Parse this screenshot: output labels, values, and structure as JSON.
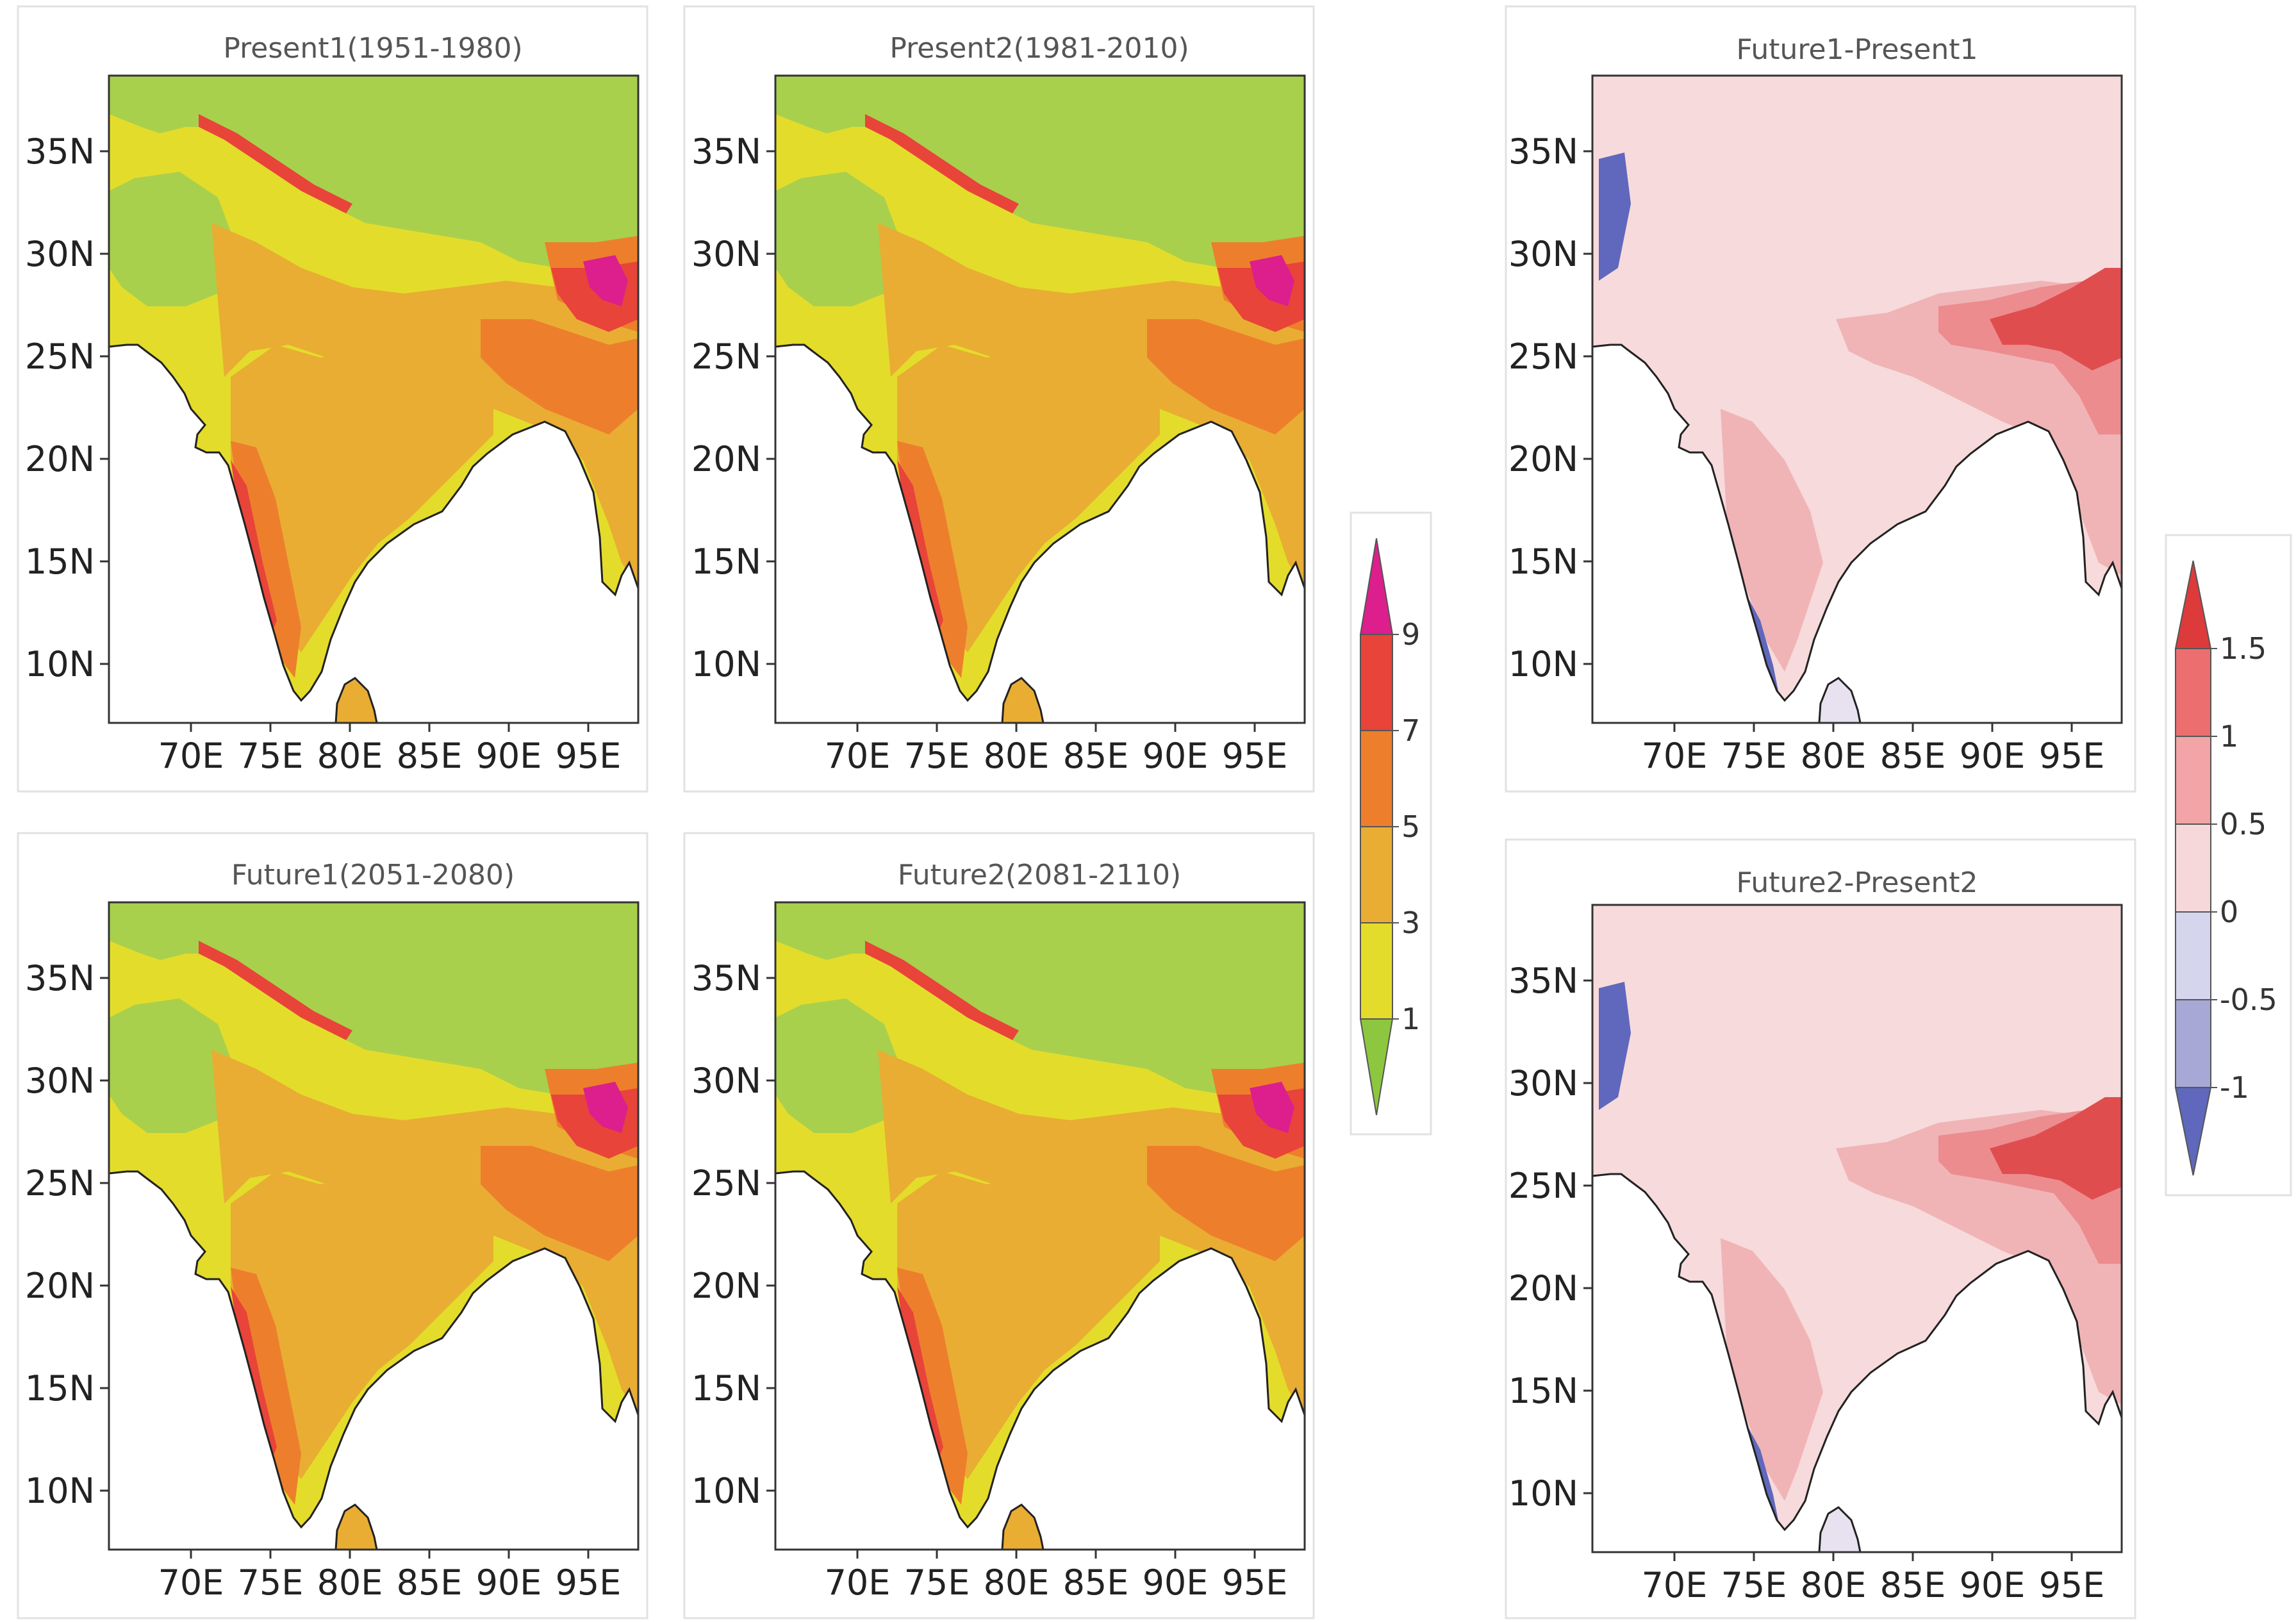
{
  "lat_ticks": [
    "35N",
    "30N",
    "25N",
    "20N",
    "15N",
    "10N"
  ],
  "lon_ticks": [
    "70E",
    "75E",
    "80E",
    "85E",
    "90E",
    "95E"
  ],
  "panels": [
    {
      "title": "Present1(1951-1980)",
      "scheme": "abs"
    },
    {
      "title": "Present2(1981-2010)",
      "scheme": "abs"
    },
    {
      "title": "Future1-Present1",
      "scheme": "diff"
    },
    {
      "title": "Future1(2051-2080)",
      "scheme": "abs"
    },
    {
      "title": "Future2(2081-2110)",
      "scheme": "abs"
    },
    {
      "title": "Future2-Present2",
      "scheme": "diff"
    }
  ],
  "colorbar_abs": {
    "labels": [
      "9",
      "7",
      "5",
      "3",
      "1"
    ],
    "colors": [
      "#dc1f8c",
      "#e8443a",
      "#ed7f2c",
      "#e9ad33",
      "#e4dc2b",
      "#8dc63f"
    ]
  },
  "colorbar_diff": {
    "labels": [
      "1.5",
      "1",
      "0.5",
      "0",
      "-0.5",
      "-1"
    ],
    "colors": [
      "#dd3b3b",
      "#ec6e6f",
      "#f2a4a6",
      "#f7d8da",
      "#d5d6ee",
      "#a7a8d6",
      "#5f68bd"
    ]
  },
  "land_colors": {
    "abs": {
      "north": "#a8d04c",
      "main": "#e4dc2b",
      "mid": "#e9ad33",
      "east": "#ed7f2c",
      "hot": "#e8443a",
      "peak": "#dc1f8c"
    },
    "diff": {
      "north": "#f7dadb",
      "main": "#f7dadb",
      "mid": "#f0b4b6",
      "east": "#ec8c8e",
      "hot": "#e04d4f",
      "cool": "#5f68bd"
    }
  }
}
